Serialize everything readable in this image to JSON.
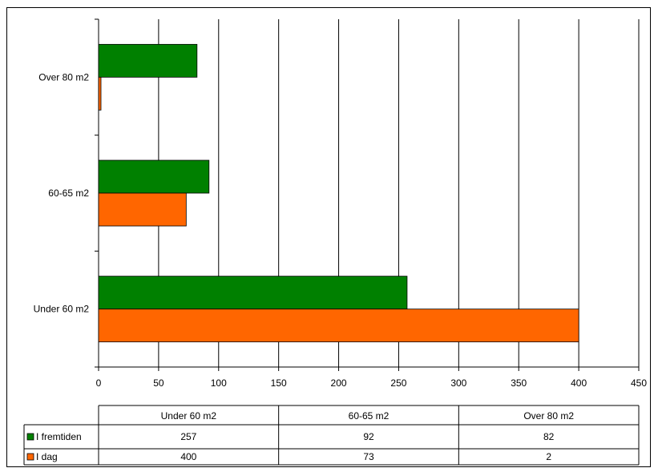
{
  "chart_data": {
    "type": "bar",
    "orientation": "horizontal",
    "categories": [
      "Under 60 m2",
      "60-65 m2",
      "Over 80 m2"
    ],
    "series": [
      {
        "name": "I fremtiden",
        "color": "#008000",
        "values": [
          257,
          92,
          82
        ]
      },
      {
        "name": "I dag",
        "color": "#ff6600",
        "values": [
          400,
          73,
          2
        ]
      }
    ],
    "xlim": [
      0,
      450
    ],
    "xticks": [
      "0",
      "50",
      "100",
      "150",
      "200",
      "250",
      "300",
      "350",
      "400",
      "450"
    ],
    "grid": "vertical",
    "legend": "data-table-below",
    "table": {
      "headers": [
        "Under 60 m2",
        "60-65 m2",
        "Over 80 m2"
      ],
      "rows": [
        {
          "series": "I fremtiden",
          "cells": [
            "257",
            "92",
            "82"
          ]
        },
        {
          "series": "I dag",
          "cells": [
            "400",
            "73",
            "2"
          ]
        }
      ]
    }
  }
}
